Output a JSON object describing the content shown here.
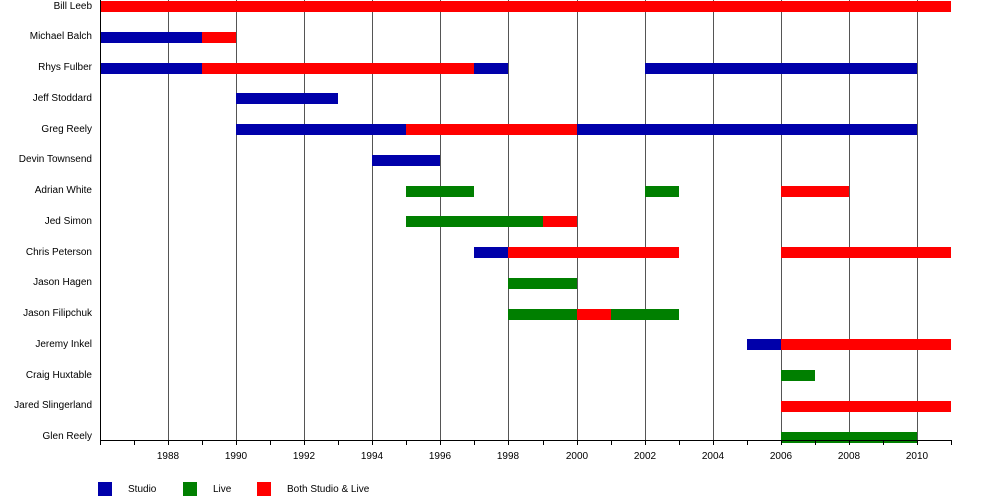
{
  "chart_data": {
    "type": "bar",
    "subtype": "horizontal-timeline",
    "title": "",
    "xlabel": "",
    "ylabel": "",
    "xlim": [
      1986,
      2011
    ],
    "x_ticks": [
      1988,
      1990,
      1992,
      1994,
      1996,
      1998,
      2000,
      2002,
      2004,
      2006,
      2008,
      2010
    ],
    "grid": "vertical lines at labeled ticks",
    "legend_position": "bottom-left",
    "colors": {
      "Studio": "#0000aa",
      "Live": "#007f00",
      "Both Studio & Live": "#ff0000"
    },
    "legend": [
      "Studio",
      "Live",
      "Both Studio & Live"
    ],
    "categories": [
      "Bill Leeb",
      "Michael Balch",
      "Rhys Fulber",
      "Jeff Stoddard",
      "Greg Reely",
      "Devin Townsend",
      "Adrian White",
      "Jed Simon",
      "Chris Peterson",
      "Jason Hagen",
      "Jason Filipchuk",
      "Jeremy Inkel",
      "Craig Huxtable",
      "Jared Slingerland",
      "Glen Reely"
    ],
    "rows": [
      {
        "name": "Bill Leeb",
        "segments": [
          {
            "type": "Both Studio & Live",
            "start": 1986,
            "end": 2011
          }
        ]
      },
      {
        "name": "Michael Balch",
        "segments": [
          {
            "type": "Studio",
            "start": 1986,
            "end": 1989
          },
          {
            "type": "Both Studio & Live",
            "start": 1989,
            "end": 1990
          }
        ]
      },
      {
        "name": "Rhys Fulber",
        "segments": [
          {
            "type": "Studio",
            "start": 1986,
            "end": 1989
          },
          {
            "type": "Both Studio & Live",
            "start": 1989,
            "end": 1997
          },
          {
            "type": "Studio",
            "start": 1997,
            "end": 1998
          },
          {
            "type": "Studio",
            "start": 2002,
            "end": 2010
          }
        ]
      },
      {
        "name": "Jeff Stoddard",
        "segments": [
          {
            "type": "Studio",
            "start": 1990,
            "end": 1993
          }
        ]
      },
      {
        "name": "Greg Reely",
        "segments": [
          {
            "type": "Studio",
            "start": 1990,
            "end": 1995
          },
          {
            "type": "Both Studio & Live",
            "start": 1995,
            "end": 2000
          },
          {
            "type": "Studio",
            "start": 2000,
            "end": 2010
          }
        ]
      },
      {
        "name": "Devin Townsend",
        "segments": [
          {
            "type": "Studio",
            "start": 1994,
            "end": 1996
          }
        ]
      },
      {
        "name": "Adrian White",
        "segments": [
          {
            "type": "Live",
            "start": 1995,
            "end": 1997
          },
          {
            "type": "Live",
            "start": 2002,
            "end": 2003
          },
          {
            "type": "Both Studio & Live",
            "start": 2006,
            "end": 2008
          }
        ]
      },
      {
        "name": "Jed Simon",
        "segments": [
          {
            "type": "Live",
            "start": 1995,
            "end": 1999
          },
          {
            "type": "Both Studio & Live",
            "start": 1999,
            "end": 2000
          }
        ]
      },
      {
        "name": "Chris Peterson",
        "segments": [
          {
            "type": "Studio",
            "start": 1997,
            "end": 1998
          },
          {
            "type": "Both Studio & Live",
            "start": 1998,
            "end": 2003
          },
          {
            "type": "Both Studio & Live",
            "start": 2006,
            "end": 2011
          }
        ]
      },
      {
        "name": "Jason Hagen",
        "segments": [
          {
            "type": "Live",
            "start": 1998,
            "end": 2000
          }
        ]
      },
      {
        "name": "Jason Filipchuk",
        "segments": [
          {
            "type": "Live",
            "start": 1998,
            "end": 2000
          },
          {
            "type": "Both Studio & Live",
            "start": 2000,
            "end": 2001
          },
          {
            "type": "Live",
            "start": 2001,
            "end": 2003
          }
        ]
      },
      {
        "name": "Jeremy Inkel",
        "segments": [
          {
            "type": "Studio",
            "start": 2005,
            "end": 2006
          },
          {
            "type": "Both Studio & Live",
            "start": 2006,
            "end": 2011
          }
        ]
      },
      {
        "name": "Craig Huxtable",
        "segments": [
          {
            "type": "Live",
            "start": 2006,
            "end": 2007
          }
        ]
      },
      {
        "name": "Jared Slingerland",
        "segments": [
          {
            "type": "Both Studio & Live",
            "start": 2006,
            "end": 2011
          }
        ]
      },
      {
        "name": "Glen Reely",
        "segments": [
          {
            "type": "Live",
            "start": 2006,
            "end": 2010
          }
        ]
      }
    ]
  }
}
